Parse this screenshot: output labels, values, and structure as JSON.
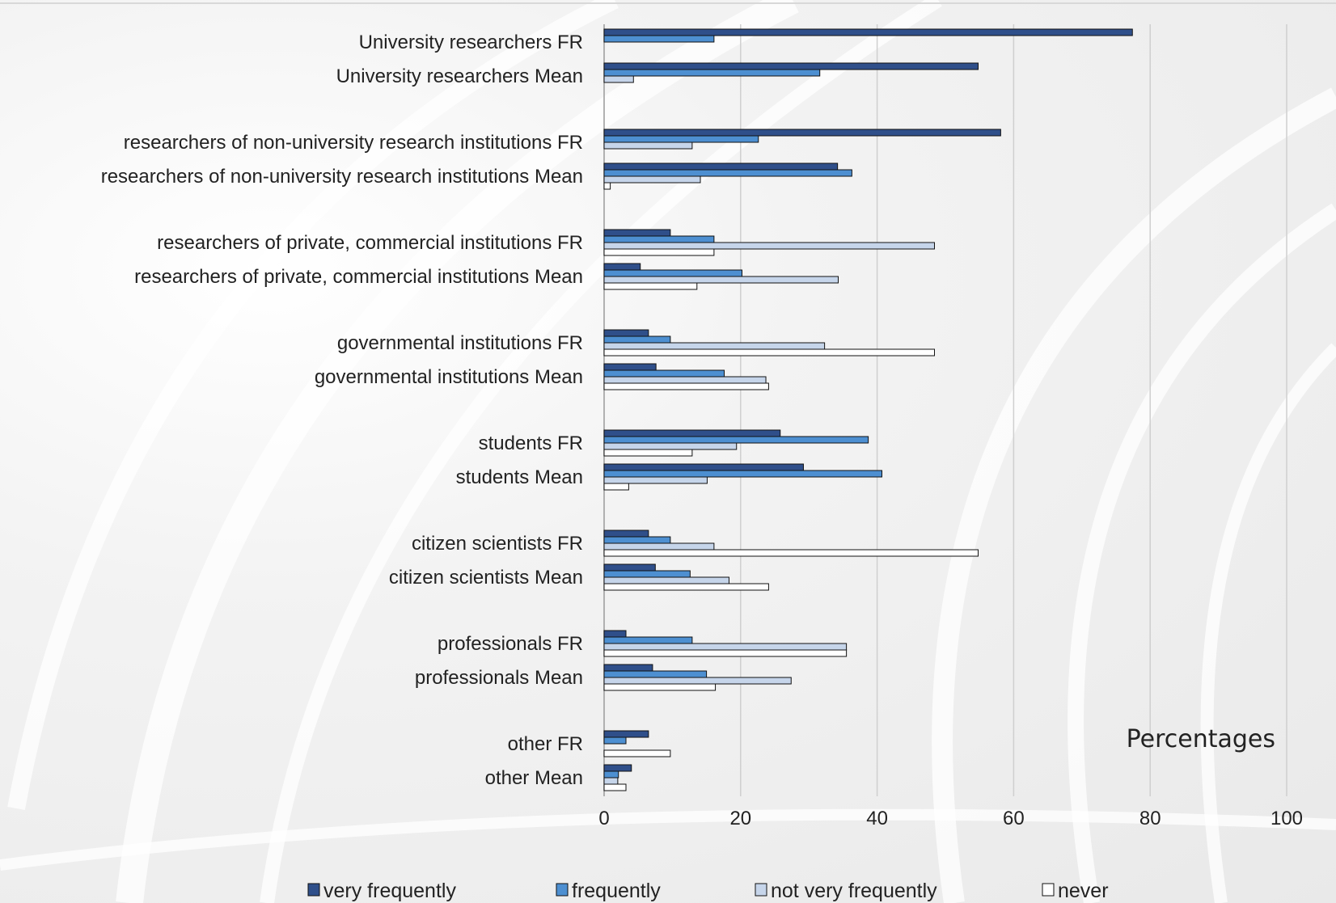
{
  "chart_data": {
    "type": "bar",
    "orientation": "horizontal",
    "annotation": "Percentages",
    "xlim": [
      0,
      100
    ],
    "xticks": [
      0,
      20,
      40,
      60,
      80,
      100
    ],
    "grid": true,
    "legend_position": "bottom",
    "categories": [
      "University researchers FR",
      "University researchers Mean",
      "researchers of non-university research institutions FR",
      "researchers of non-university research institutions Mean",
      "researchers of private, commercial institutions FR",
      "researchers of private, commercial institutions Mean",
      "governmental institutions FR",
      "governmental institutions Mean",
      "students FR",
      "students Mean",
      "citizen scientists FR",
      "citizen scientists Mean",
      "professionals FR",
      "professionals Mean",
      "other FR",
      "other Mean"
    ],
    "series": [
      {
        "name": "very frequently",
        "color": "#2f4f8a",
        "values": [
          77.4,
          54.8,
          58.1,
          34.2,
          9.7,
          5.3,
          6.5,
          7.6,
          25.8,
          29.2,
          6.5,
          7.5,
          3.2,
          7.1,
          6.5,
          4.0
        ]
      },
      {
        "name": "frequently",
        "color": "#4d8fd1",
        "values": [
          16.1,
          31.6,
          22.6,
          36.3,
          16.1,
          20.2,
          9.7,
          17.6,
          38.7,
          40.7,
          9.7,
          12.6,
          12.9,
          15.0,
          3.2,
          2.1
        ]
      },
      {
        "name": "not very frequently",
        "color": "#c6d5ea",
        "values": [
          0,
          4.3,
          12.9,
          14.1,
          48.4,
          34.3,
          32.3,
          23.7,
          19.4,
          15.1,
          16.1,
          18.3,
          35.5,
          27.4,
          0,
          2.0
        ]
      },
      {
        "name": "never",
        "color": "#ffffff",
        "values": [
          0,
          0,
          0,
          0.9,
          16.1,
          13.6,
          48.4,
          24.1,
          12.9,
          3.6,
          54.8,
          24.1,
          35.5,
          16.3,
          9.7,
          3.2
        ]
      }
    ]
  }
}
